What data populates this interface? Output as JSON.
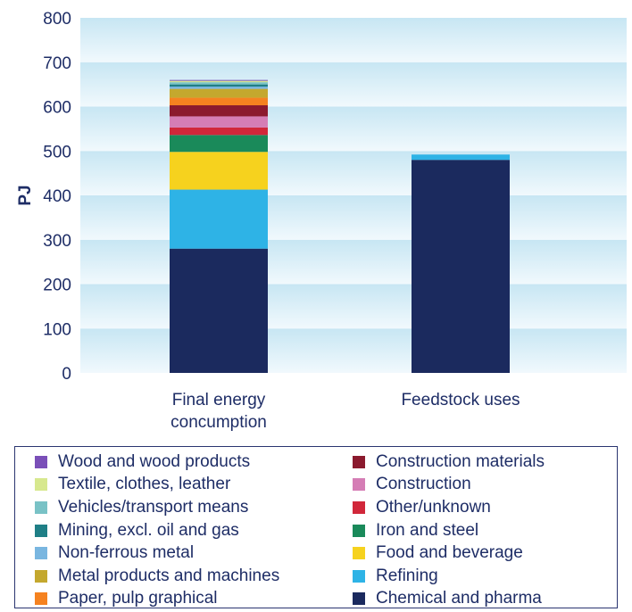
{
  "chart_data": {
    "type": "bar",
    "stacked": true,
    "ylabel": "PJ",
    "ylim": [
      0,
      800
    ],
    "yticks": [
      0,
      100,
      200,
      300,
      400,
      500,
      600,
      700,
      800
    ],
    "grid": "horizontal bands",
    "categories": [
      "Final energy\nconcumption",
      "Feedstock uses"
    ],
    "series": [
      {
        "name": "Chemical and pharma",
        "color": "#1b2a5e",
        "values": [
          280,
          480
        ]
      },
      {
        "name": "Refining",
        "color": "#2eb3e6",
        "values": [
          133,
          12
        ]
      },
      {
        "name": "Food and beverage",
        "color": "#f6d21e",
        "values": [
          85,
          0
        ]
      },
      {
        "name": "Iron and steel",
        "color": "#1a8a5a",
        "values": [
          38,
          0
        ]
      },
      {
        "name": "Other/unknown",
        "color": "#d1273a",
        "values": [
          17,
          0
        ]
      },
      {
        "name": "Construction",
        "color": "#d57db5",
        "values": [
          25,
          0
        ]
      },
      {
        "name": "Construction materials",
        "color": "#8b1a2e",
        "values": [
          25,
          0
        ]
      },
      {
        "name": "Paper, pulp graphical",
        "color": "#f58220",
        "values": [
          17,
          0
        ]
      },
      {
        "name": "Metal products and machines",
        "color": "#c4a82e",
        "values": [
          20,
          0
        ]
      },
      {
        "name": "Non-ferrous metal",
        "color": "#79b6e0",
        "values": [
          5,
          0
        ]
      },
      {
        "name": "Mining, excl. oil and gas",
        "color": "#1f7f86",
        "values": [
          5,
          0
        ]
      },
      {
        "name": "Vehicles/transport means",
        "color": "#79c2c6",
        "values": [
          5,
          0
        ]
      },
      {
        "name": "Textile, clothes, leather",
        "color": "#d7e88e",
        "values": [
          3,
          0
        ]
      },
      {
        "name": "Wood and wood products",
        "color": "#7a4fb8",
        "values": [
          2,
          0
        ]
      }
    ],
    "legend": {
      "placement": "bottom",
      "left_column": [
        "Wood and wood products",
        "Textile, clothes, leather",
        "Vehicles/transport means",
        "Mining, excl. oil and gas",
        "Non-ferrous metal",
        "Metal products and machines",
        "Paper, pulp graphical"
      ],
      "right_column": [
        "Construction materials",
        "Construction",
        "Other/unknown",
        "Iron and steel",
        "Food and beverage",
        "Refining",
        "Chemical and pharma"
      ]
    }
  }
}
